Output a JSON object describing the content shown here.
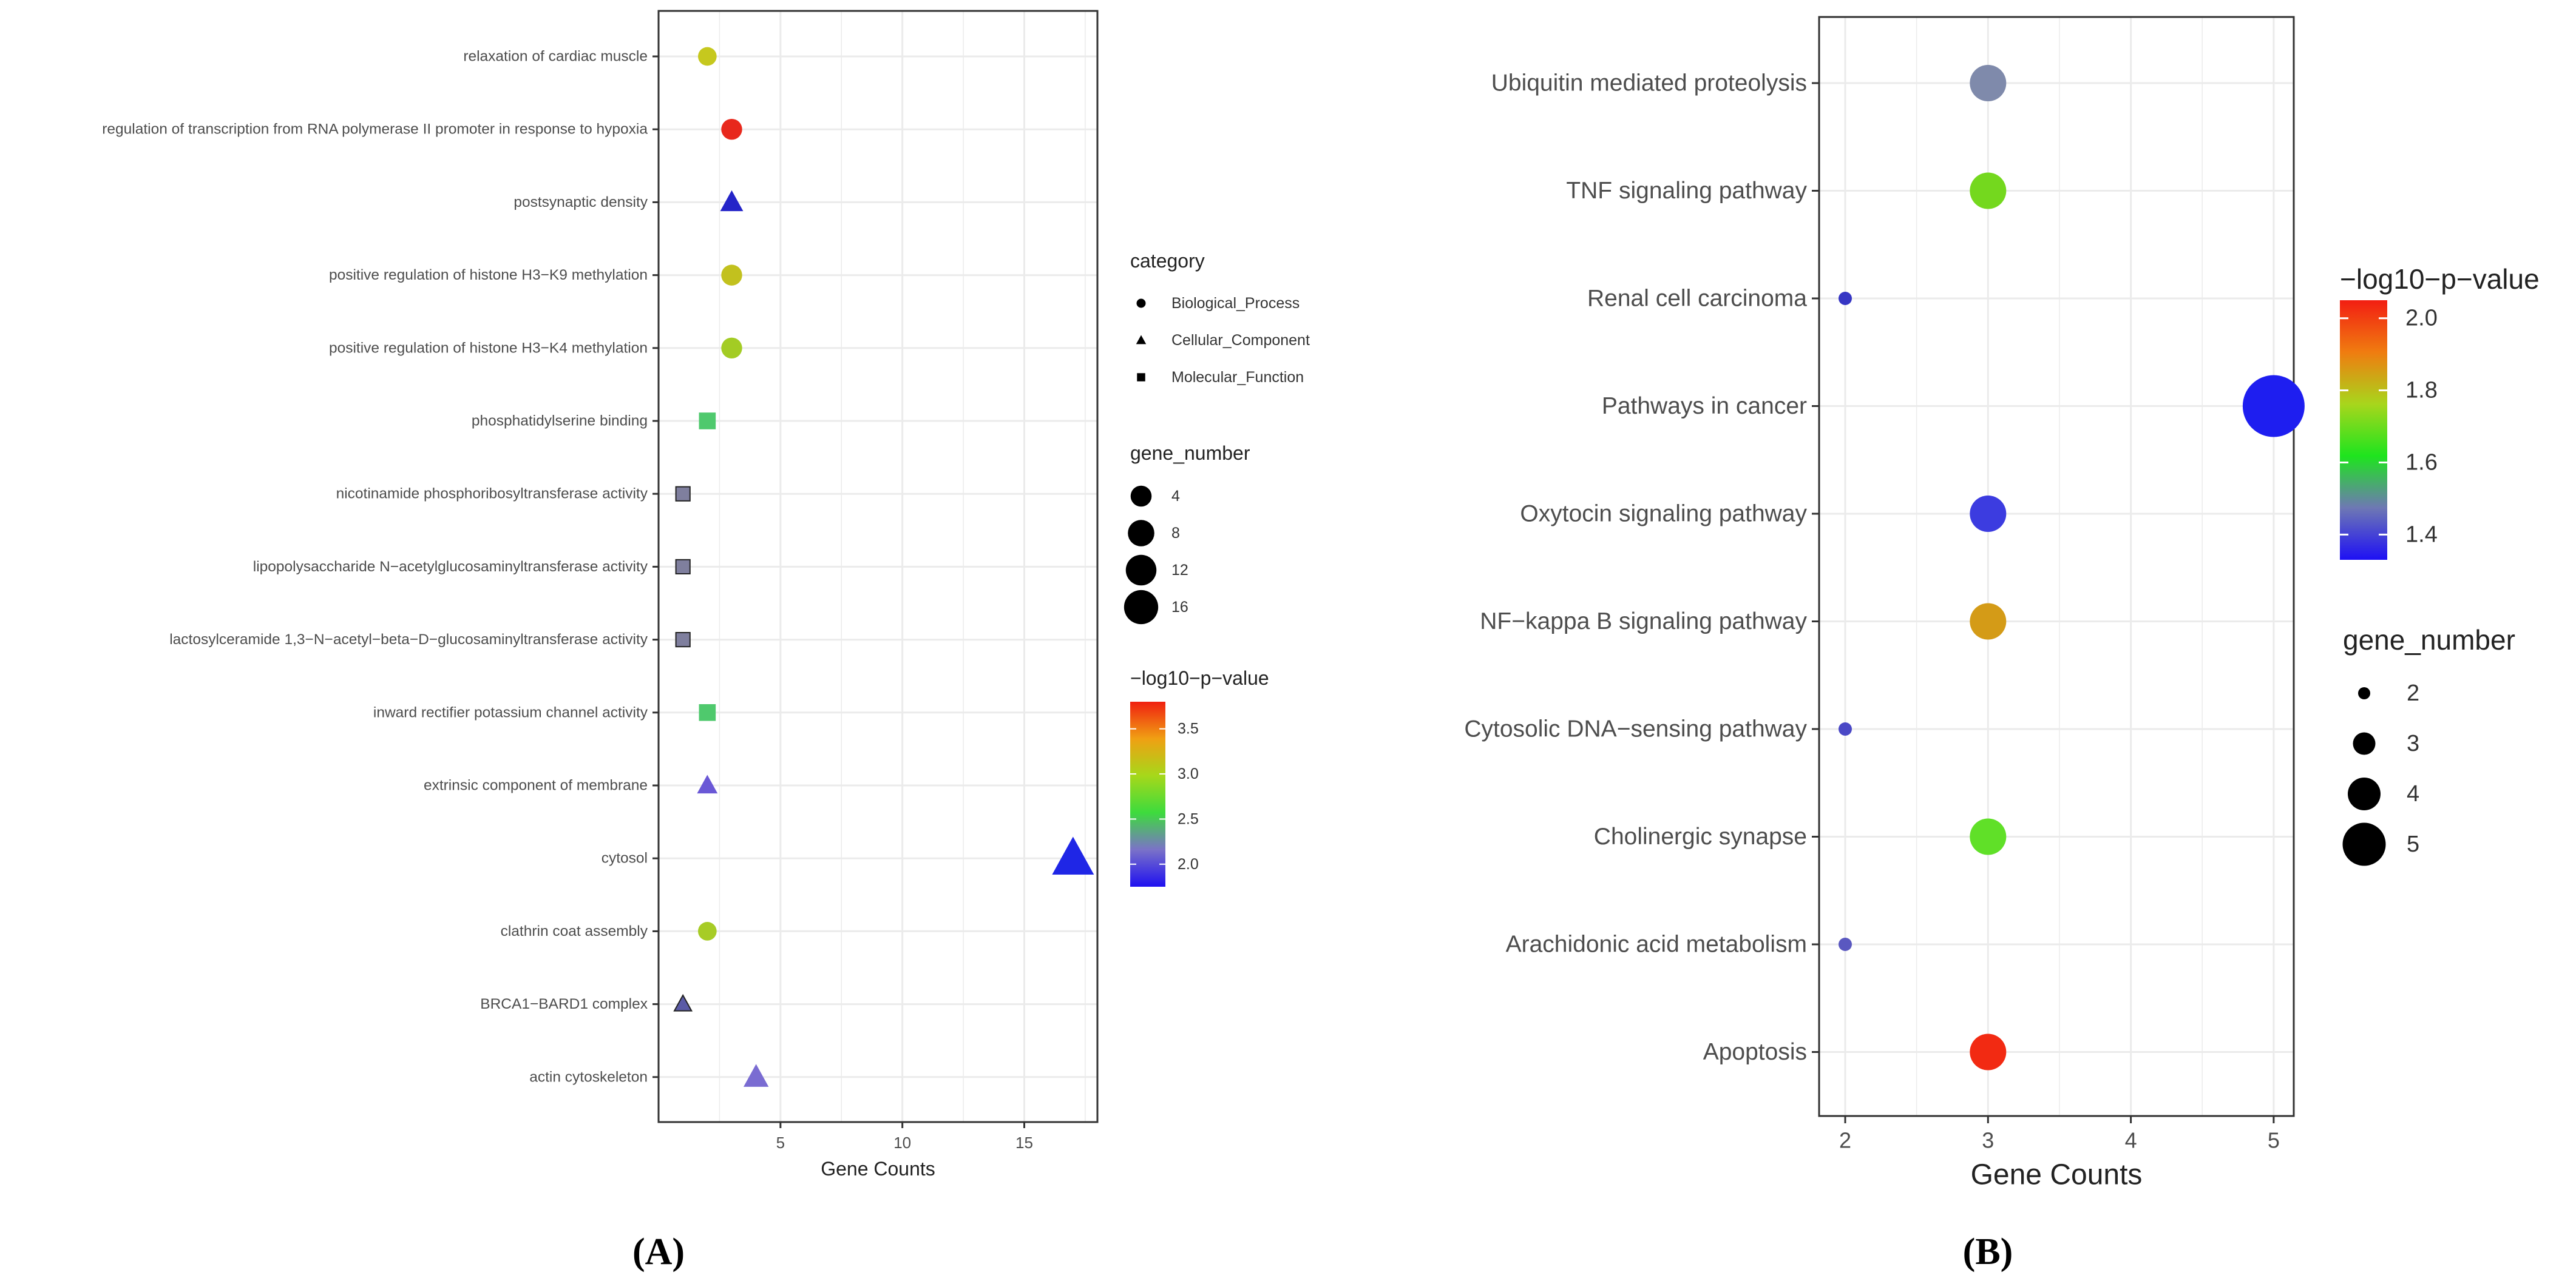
{
  "chart_data": [
    {
      "panel_label": "(A)",
      "type": "scatter",
      "xlabel": "Gene Counts",
      "ylabel": "",
      "xlim": [
        0,
        18
      ],
      "x_ticks": [
        5,
        10,
        15
      ],
      "grid": true,
      "categories": [
        "relaxation of cardiac muscle",
        "regulation of transcription from RNA polymerase II promoter in response to hypoxia",
        "postsynaptic density",
        "positive regulation of histone H3−K9 methylation",
        "positive regulation of histone H3−K4 methylation",
        "phosphatidylserine binding",
        "nicotinamide phosphoribosyltransferase activity",
        "lipopolysaccharide N−acetylglucosaminyltransferase activity",
        "lactosylceramide 1,3−N−acetyl−beta−D−glucosaminyltransferase activity",
        "inward rectifier potassium channel activity",
        "extrinsic component of membrane",
        "cytosol",
        "clathrin coat assembly",
        "BRCA1−BARD1 complex",
        "actin cytoskeleton"
      ],
      "points": [
        {
          "term": "relaxation of cardiac muscle",
          "gene_counts": 2,
          "category": "Biological_Process",
          "neg_log10_p": 3.3,
          "color": "#c6c81e"
        },
        {
          "term": "regulation of transcription from RNA polymerase II promoter in response to hypoxia",
          "gene_counts": 3,
          "category": "Biological_Process",
          "neg_log10_p": 3.8,
          "color": "#e8281c"
        },
        {
          "term": "postsynaptic density",
          "gene_counts": 3,
          "category": "Cellular_Component",
          "neg_log10_p": 1.75,
          "color": "#2424c8"
        },
        {
          "term": "positive regulation of histone H3−K9 methylation",
          "gene_counts": 3,
          "category": "Biological_Process",
          "neg_log10_p": 3.3,
          "color": "#c2c11e"
        },
        {
          "term": "positive regulation of histone H3−K4 methylation",
          "gene_counts": 3,
          "category": "Biological_Process",
          "neg_log10_p": 3.1,
          "color": "#a3cc24"
        },
        {
          "term": "phosphatidylserine binding",
          "gene_counts": 2,
          "category": "Molecular_Function",
          "neg_log10_p": 2.6,
          "color": "#4fc96d"
        },
        {
          "term": "nicotinamide phosphoribosyltransferase activity",
          "gene_counts": 1,
          "category": "Molecular_Function",
          "neg_log10_p": 1.9,
          "color": "#7f7f9e"
        },
        {
          "term": "lipopolysaccharide N−acetylglucosaminyltransferase activity",
          "gene_counts": 1,
          "category": "Molecular_Function",
          "neg_log10_p": 1.9,
          "color": "#7f7f9e"
        },
        {
          "term": "lactosylceramide 1,3−N−acetyl−beta−D−glucosaminyltransferase activity",
          "gene_counts": 1,
          "category": "Molecular_Function",
          "neg_log10_p": 1.9,
          "color": "#7f7f9e"
        },
        {
          "term": "inward rectifier potassium channel activity",
          "gene_counts": 2,
          "category": "Molecular_Function",
          "neg_log10_p": 2.6,
          "color": "#4fc96d"
        },
        {
          "term": "extrinsic component of membrane",
          "gene_counts": 2,
          "category": "Cellular_Component",
          "neg_log10_p": 1.95,
          "color": "#6a58d6"
        },
        {
          "term": "cytosol",
          "gene_counts": 17,
          "category": "Cellular_Component",
          "neg_log10_p": 1.7,
          "color": "#1f26e6"
        },
        {
          "term": "clathrin coat assembly",
          "gene_counts": 2,
          "category": "Biological_Process",
          "neg_log10_p": 3.1,
          "color": "#a7cc26"
        },
        {
          "term": "BRCA1−BARD1 complex",
          "gene_counts": 1,
          "category": "Cellular_Component",
          "neg_log10_p": 1.9,
          "color": "#5a5aa6"
        },
        {
          "term": "actin cytoskeleton",
          "gene_counts": 4,
          "category": "Cellular_Component",
          "neg_log10_p": 2.0,
          "color": "#7a6cd2"
        }
      ],
      "legend_category": {
        "title": "category",
        "entries": [
          "Biological_Process",
          "Cellular_Component",
          "Molecular_Function"
        ]
      },
      "legend_size": {
        "title": "gene_number",
        "entries": [
          4,
          8,
          12,
          16
        ]
      },
      "legend_color": {
        "title": "−log10−p−value",
        "min": 1.75,
        "max": 3.8,
        "ticks": [
          "3.5",
          "3.0",
          "2.5",
          "2.0"
        ],
        "tick_values": [
          3.5,
          3.0,
          2.5,
          2.0
        ],
        "gradient": [
          "#1f10f0",
          "#7a72c8",
          "#3ddb3d",
          "#a6d81a",
          "#f0a013",
          "#f02010"
        ]
      }
    },
    {
      "panel_label": "(B)",
      "type": "scatter",
      "xlabel": "Gene Counts",
      "ylabel": "",
      "xlim": [
        1.9,
        5.15
      ],
      "x_ticks": [
        2,
        3,
        4,
        5
      ],
      "grid": true,
      "categories": [
        "Ubiquitin mediated proteolysis",
        "TNF signaling pathway",
        "Renal cell carcinoma",
        "Pathways in cancer",
        "Oxytocin signaling pathway",
        "NF−kappa B signaling pathway",
        "Cytosolic DNA−sensing pathway",
        "Cholinergic synapse",
        "Arachidonic acid metabolism",
        "Apoptosis"
      ],
      "points": [
        {
          "term": "Ubiquitin mediated proteolysis",
          "gene_counts": 3,
          "neg_log10_p": 1.45,
          "color": "#7f8aab"
        },
        {
          "term": "TNF signaling pathway",
          "gene_counts": 3,
          "neg_log10_p": 1.75,
          "color": "#74d81e"
        },
        {
          "term": "Renal cell carcinoma",
          "gene_counts": 2,
          "neg_log10_p": 1.35,
          "color": "#3636c4"
        },
        {
          "term": "Pathways in cancer",
          "gene_counts": 5,
          "neg_log10_p": 1.33,
          "color": "#1e1ef0"
        },
        {
          "term": "Oxytocin signaling pathway",
          "gene_counts": 3,
          "neg_log10_p": 1.36,
          "color": "#3c3ce0"
        },
        {
          "term": "NF−kappa B signaling pathway",
          "gene_counts": 3,
          "neg_log10_p": 1.88,
          "color": "#d49b17"
        },
        {
          "term": "Cytosolic DNA−sensing pathway",
          "gene_counts": 2,
          "neg_log10_p": 1.36,
          "color": "#4a48c6"
        },
        {
          "term": "Cholinergic synapse",
          "gene_counts": 3,
          "neg_log10_p": 1.72,
          "color": "#60e028"
        },
        {
          "term": "Arachidonic acid metabolism",
          "gene_counts": 2,
          "neg_log10_p": 1.37,
          "color": "#5a58c0"
        },
        {
          "term": "Apoptosis",
          "gene_counts": 3,
          "neg_log10_p": 2.02,
          "color": "#f22a12"
        }
      ],
      "legend_color": {
        "title": "−log10−p−value",
        "min": 1.33,
        "max": 2.05,
        "ticks": [
          "2.0",
          "1.8",
          "1.6",
          "1.4"
        ],
        "tick_values": [
          2.0,
          1.8,
          1.6,
          1.4
        ],
        "gradient": [
          "#1e10f4",
          "#6e78b4",
          "#1ee41e",
          "#a8d61c",
          "#f07c10",
          "#f21e12"
        ]
      },
      "legend_size": {
        "title": "gene_number",
        "entries": [
          2,
          3,
          4,
          5
        ]
      }
    }
  ]
}
